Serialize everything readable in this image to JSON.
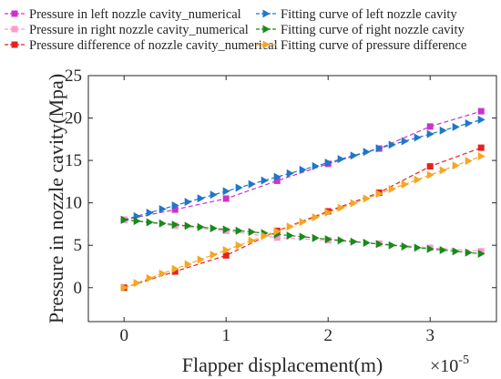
{
  "chart_data": {
    "type": "line",
    "xlabel": "Flapper displacement(m)",
    "ylabel": "Pressure in nozzle cavity(Mpa)",
    "x_multiplier": "×10",
    "x_multiplier_exp": "-5",
    "xlim": [
      -0.35,
      3.65
    ],
    "ylim": [
      -4,
      25
    ],
    "xticks": [
      0,
      1,
      2,
      3
    ],
    "yticks": [
      0,
      5,
      10,
      15,
      20,
      25
    ],
    "grid": false,
    "legend_position": "top",
    "series": [
      {
        "name": "Pressure in left nozzle cavity_numerical",
        "color": "#cc33cc",
        "marker": "square",
        "line": "dashed",
        "x": [
          0,
          0.5,
          1,
          1.5,
          2,
          2.5,
          3,
          3.5
        ],
        "y": [
          8.0,
          9.2,
          10.5,
          12.6,
          14.6,
          16.4,
          19.0,
          20.8
        ]
      },
      {
        "name": "Pressure in right nozzle cavity_numerical",
        "color": "#ff99cc",
        "marker": "square",
        "line": "dashed",
        "x": [
          0,
          0.5,
          1,
          1.5,
          2,
          2.5,
          3,
          3.5
        ],
        "y": [
          8.0,
          7.3,
          6.7,
          5.9,
          5.6,
          5.2,
          4.7,
          4.3
        ]
      },
      {
        "name": "Pressure difference of nozzle cavity_numerical",
        "color": "#e8211c",
        "marker": "square",
        "line": "dashed",
        "x": [
          0,
          0.5,
          1,
          1.5,
          2,
          2.5,
          3,
          3.5
        ],
        "y": [
          0.0,
          1.9,
          3.8,
          6.7,
          9.0,
          11.2,
          14.3,
          16.5
        ]
      },
      {
        "name": "Fitting curve of left nozzle cavity",
        "color": "#1f77c8",
        "marker": "triangle-right",
        "line": "dashed",
        "x": [
          0,
          0.125,
          0.25,
          0.375,
          0.5,
          0.625,
          0.75,
          0.875,
          1,
          1.125,
          1.25,
          1.375,
          1.5,
          1.625,
          1.75,
          1.875,
          2,
          2.125,
          2.25,
          2.375,
          2.5,
          2.625,
          2.75,
          2.875,
          3,
          3.125,
          3.25,
          3.375,
          3.5
        ],
        "y": [
          8.0,
          8.42,
          8.84,
          9.26,
          9.69,
          10.11,
          10.53,
          10.95,
          11.37,
          11.79,
          12.21,
          12.63,
          13.06,
          13.48,
          13.9,
          14.32,
          14.74,
          15.16,
          15.58,
          16.0,
          16.43,
          16.85,
          17.27,
          17.69,
          18.11,
          18.53,
          18.95,
          19.37,
          19.8
        ]
      },
      {
        "name": "Fitting curve of right nozzle cavity",
        "color": "#1a8a1a",
        "marker": "triangle-right",
        "line": "dashed",
        "x": [
          0,
          0.125,
          0.25,
          0.375,
          0.5,
          0.625,
          0.75,
          0.875,
          1,
          1.125,
          1.25,
          1.375,
          1.5,
          1.625,
          1.75,
          1.875,
          2,
          2.125,
          2.25,
          2.375,
          2.5,
          2.625,
          2.75,
          2.875,
          3,
          3.125,
          3.25,
          3.375,
          3.5
        ],
        "y": [
          8.0,
          7.86,
          7.71,
          7.57,
          7.43,
          7.29,
          7.14,
          7.0,
          6.86,
          6.71,
          6.57,
          6.43,
          6.29,
          6.14,
          6.0,
          5.86,
          5.71,
          5.57,
          5.43,
          5.29,
          5.14,
          5.0,
          4.86,
          4.71,
          4.57,
          4.43,
          4.29,
          4.14,
          4.0
        ]
      },
      {
        "name": "Fitting curve of pressure difference",
        "color": "#f5a623",
        "marker": "triangle-right",
        "line": "dashed",
        "x": [
          0,
          0.125,
          0.25,
          0.375,
          0.5,
          0.625,
          0.75,
          0.875,
          1,
          1.125,
          1.25,
          1.375,
          1.5,
          1.625,
          1.75,
          1.875,
          2,
          2.125,
          2.25,
          2.375,
          2.5,
          2.625,
          2.75,
          2.875,
          3,
          3.125,
          3.25,
          3.375,
          3.5
        ],
        "y": [
          0.0,
          0.55,
          1.11,
          1.66,
          2.21,
          2.77,
          3.32,
          3.88,
          4.43,
          4.98,
          5.54,
          6.09,
          6.64,
          7.2,
          7.75,
          8.3,
          8.86,
          9.41,
          9.96,
          10.52,
          11.07,
          11.63,
          12.18,
          12.73,
          13.29,
          13.84,
          14.39,
          14.95,
          15.5
        ]
      }
    ]
  }
}
